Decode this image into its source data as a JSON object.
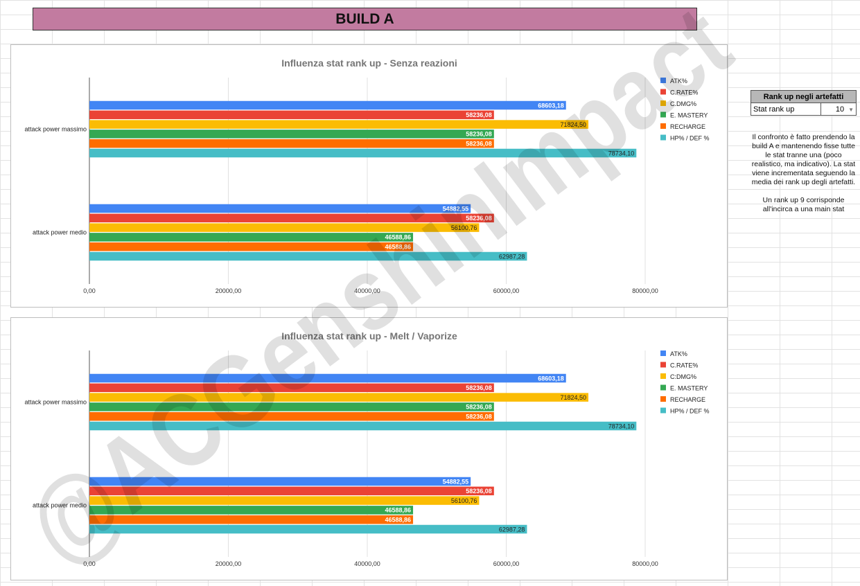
{
  "banner": {
    "title": "BUILD A"
  },
  "chart_data": [
    {
      "type": "bar",
      "orientation": "horizontal",
      "title": "Influenza stat rank up - Senza reazioni",
      "categories": [
        "attack power massimo",
        "attack power medio"
      ],
      "xlim": [
        0,
        80000
      ],
      "x_ticks": [
        "0,00",
        "20000,00",
        "40000,00",
        "60000,00",
        "80000,00"
      ],
      "grid": true,
      "legend_position": "right",
      "series": [
        {
          "name": "ATK%",
          "color": "#4285f4",
          "values": [
            68603.18,
            54882.55
          ],
          "labels": [
            "68603,18",
            "54882,55"
          ]
        },
        {
          "name": "C.RATE%",
          "color": "#ea4335",
          "values": [
            58236.08,
            58236.08
          ],
          "labels": [
            "58236,08",
            "58236,08"
          ]
        },
        {
          "name": "C.DMG%",
          "color": "#fbbc04",
          "values": [
            71824.5,
            56100.76
          ],
          "labels": [
            "71824,50",
            "56100,76"
          ]
        },
        {
          "name": "E. MASTERY",
          "color": "#34a853",
          "values": [
            58236.08,
            46588.86
          ],
          "labels": [
            "58236,08",
            "46588,86"
          ]
        },
        {
          "name": "RECHARGE",
          "color": "#ff6d01",
          "values": [
            58236.08,
            46588.86
          ],
          "labels": [
            "58236,08",
            "46588,86"
          ]
        },
        {
          "name": "HP% / DEF %",
          "color": "#46bdc6",
          "values": [
            78734.1,
            62987.28
          ],
          "labels": [
            "78734,10",
            "62987,28"
          ]
        }
      ]
    },
    {
      "type": "bar",
      "orientation": "horizontal",
      "title": "Influenza stat rank up - Melt / Vaporize",
      "categories": [
        "attack power massimo",
        "attack power medio"
      ],
      "xlim": [
        0,
        80000
      ],
      "x_ticks": [
        "0,00",
        "20000,00",
        "40000,00",
        "60000,00",
        "80000,00"
      ],
      "grid": true,
      "legend_position": "right",
      "series": [
        {
          "name": "ATK%",
          "color": "#4285f4",
          "values": [
            68603.18,
            54882.55
          ],
          "labels": [
            "68603,18",
            "54882,55"
          ]
        },
        {
          "name": "C.RATE%",
          "color": "#ea4335",
          "values": [
            58236.08,
            58236.08
          ],
          "labels": [
            "58236,08",
            "58236,08"
          ]
        },
        {
          "name": "C:DMG%",
          "color": "#fbbc04",
          "values": [
            71824.5,
            56100.76
          ],
          "labels": [
            "71824,50",
            "56100,76"
          ]
        },
        {
          "name": "E. MASTERY",
          "color": "#34a853",
          "values": [
            58236.08,
            46588.86
          ],
          "labels": [
            "58236,08",
            "46588,86"
          ]
        },
        {
          "name": "RECHARGE",
          "color": "#ff6d01",
          "values": [
            58236.08,
            46588.86
          ],
          "labels": [
            "58236,08",
            "46588,86"
          ]
        },
        {
          "name": "HP% / DEF %",
          "color": "#46bdc6",
          "values": [
            78734.1,
            62987.28
          ],
          "labels": [
            "78734,10",
            "62987,28"
          ]
        }
      ]
    }
  ],
  "side_panel": {
    "table_header": "Rank up negli artefatti",
    "row_label": "Stat rank up",
    "row_value": "10",
    "note_1": "Il confronto è fatto prendendo la build A e mantenendo fisse tutte le stat tranne una (poco realistico, ma indicativo). La stat viene incrementata seguendo la media dei rank up degli artefatti.",
    "note_2": "Un rank up 9 corrisponde all'incirca a una main stat"
  },
  "watermark": {
    "text": "@ACGenshinImpact"
  }
}
